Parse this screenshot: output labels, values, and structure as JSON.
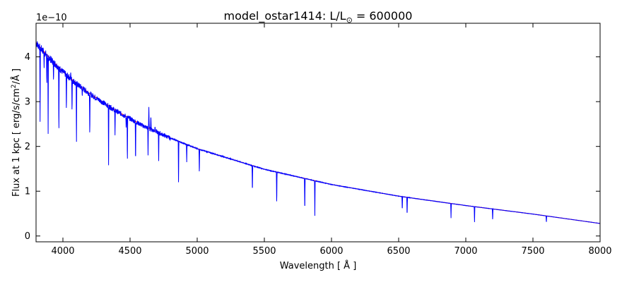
{
  "chart_data": {
    "type": "line",
    "title_main": "model_ostar1414: L/L",
    "title_sub": "⊙",
    "title_tail": " = 600000",
    "xlabel": "Wavelength [ Å ]",
    "ylabel_main": "Flux at 1 kpc [ erg/s/cm",
    "ylabel_sup": "2",
    "ylabel_tail": "/Å ]",
    "offset_text": "1e−10",
    "xlim": [
      3800,
      8000
    ],
    "ylim": [
      -0.13,
      4.75
    ],
    "y_scale_factor": 1e-10,
    "xticks": [
      4000,
      4500,
      5000,
      5500,
      6000,
      6500,
      7000,
      7500,
      8000
    ],
    "yticks": [
      0,
      1,
      2,
      3,
      4
    ],
    "grid": false,
    "continuum": {
      "color": "#ff0000",
      "x": [
        3800,
        3900,
        4000,
        4100,
        4200,
        4400,
        4600,
        4800,
        5000,
        5500,
        6000,
        6500,
        7000,
        7500,
        8000
      ],
      "y": [
        4.32,
        3.98,
        3.67,
        3.41,
        3.18,
        2.79,
        2.46,
        2.19,
        1.95,
        1.49,
        1.15,
        0.89,
        0.68,
        0.49,
        0.28
      ]
    },
    "spectrum": {
      "color": "#0000ff",
      "emission": [
        {
          "x": 4058,
          "peak": 3.65
        },
        {
          "x": 4640,
          "peak": 2.88
        },
        {
          "x": 4655,
          "peak": 2.7
        },
        {
          "x": 4686,
          "peak": 2.45
        },
        {
          "x": 4900,
          "peak": 1.89
        },
        {
          "x": 6680,
          "peak": 0.78
        }
      ],
      "absorption": [
        {
          "x": 3830,
          "depth": 2.55
        },
        {
          "x": 3860,
          "depth": 3.75
        },
        {
          "x": 3880,
          "depth": 3.3
        },
        {
          "x": 3890,
          "depth": 2.28
        },
        {
          "x": 3930,
          "depth": 3.42
        },
        {
          "x": 3970,
          "depth": 2.15
        },
        {
          "x": 4026,
          "depth": 2.72
        },
        {
          "x": 4068,
          "depth": 2.7
        },
        {
          "x": 4101,
          "depth": 1.99
        },
        {
          "x": 4144,
          "depth": 3.1
        },
        {
          "x": 4200,
          "depth": 2.15
        },
        {
          "x": 4340,
          "depth": 1.58
        },
        {
          "x": 4388,
          "depth": 2.25
        },
        {
          "x": 4471,
          "depth": 2.4
        },
        {
          "x": 4480,
          "depth": 1.55
        },
        {
          "x": 4541,
          "depth": 1.55
        },
        {
          "x": 4634,
          "depth": 1.8
        },
        {
          "x": 4713,
          "depth": 1.62
        },
        {
          "x": 4861,
          "depth": 1.12
        },
        {
          "x": 4922,
          "depth": 1.65
        },
        {
          "x": 5016,
          "depth": 1.35
        },
        {
          "x": 5411,
          "depth": 0.93
        },
        {
          "x": 5592,
          "depth": 0.65
        },
        {
          "x": 5801,
          "depth": 0.49
        },
        {
          "x": 5876,
          "depth": 0.45
        },
        {
          "x": 6527,
          "depth": 0.55
        },
        {
          "x": 6563,
          "depth": 0.42
        },
        {
          "x": 6890,
          "depth": 0.4
        },
        {
          "x": 7065,
          "depth": 0.28
        },
        {
          "x": 7200,
          "depth": 0.33
        },
        {
          "x": 7600,
          "depth": 0.29
        }
      ]
    }
  }
}
